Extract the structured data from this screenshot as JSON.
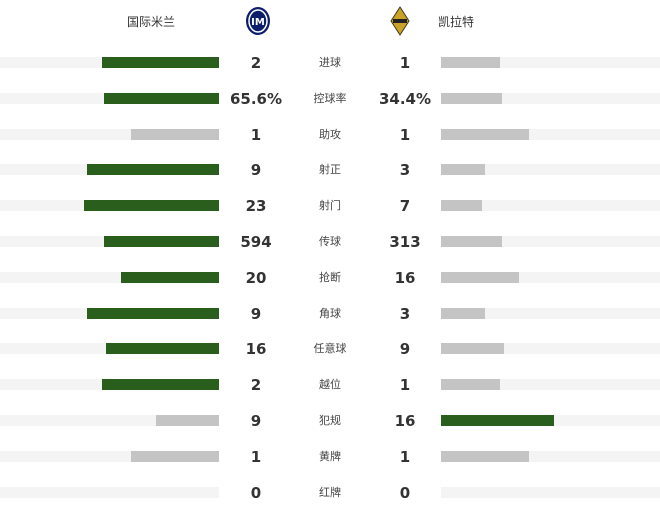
{
  "home": {
    "name": "国际米兰",
    "logo": "inter-milan-logo"
  },
  "away": {
    "name": "凯拉特",
    "logo": "kairat-logo"
  },
  "colors": {
    "leader": "#2a5e1d",
    "other": "#c4c4c4",
    "track": "#f4f4f4"
  },
  "stats": [
    {
      "label": "进球",
      "home": "2",
      "away": "1"
    },
    {
      "label": "控球率",
      "home": "65.6%",
      "away": "34.4%"
    },
    {
      "label": "助攻",
      "home": "1",
      "away": "1"
    },
    {
      "label": "射正",
      "home": "9",
      "away": "3"
    },
    {
      "label": "射门",
      "home": "23",
      "away": "7"
    },
    {
      "label": "传球",
      "home": "594",
      "away": "313"
    },
    {
      "label": "抢断",
      "home": "20",
      "away": "16"
    },
    {
      "label": "角球",
      "home": "9",
      "away": "3"
    },
    {
      "label": "任意球",
      "home": "16",
      "away": "9"
    },
    {
      "label": "越位",
      "home": "2",
      "away": "1"
    },
    {
      "label": "犯规",
      "home": "9",
      "away": "16"
    },
    {
      "label": "黄牌",
      "home": "1",
      "away": "1"
    },
    {
      "label": "红牌",
      "home": "0",
      "away": "0"
    }
  ]
}
